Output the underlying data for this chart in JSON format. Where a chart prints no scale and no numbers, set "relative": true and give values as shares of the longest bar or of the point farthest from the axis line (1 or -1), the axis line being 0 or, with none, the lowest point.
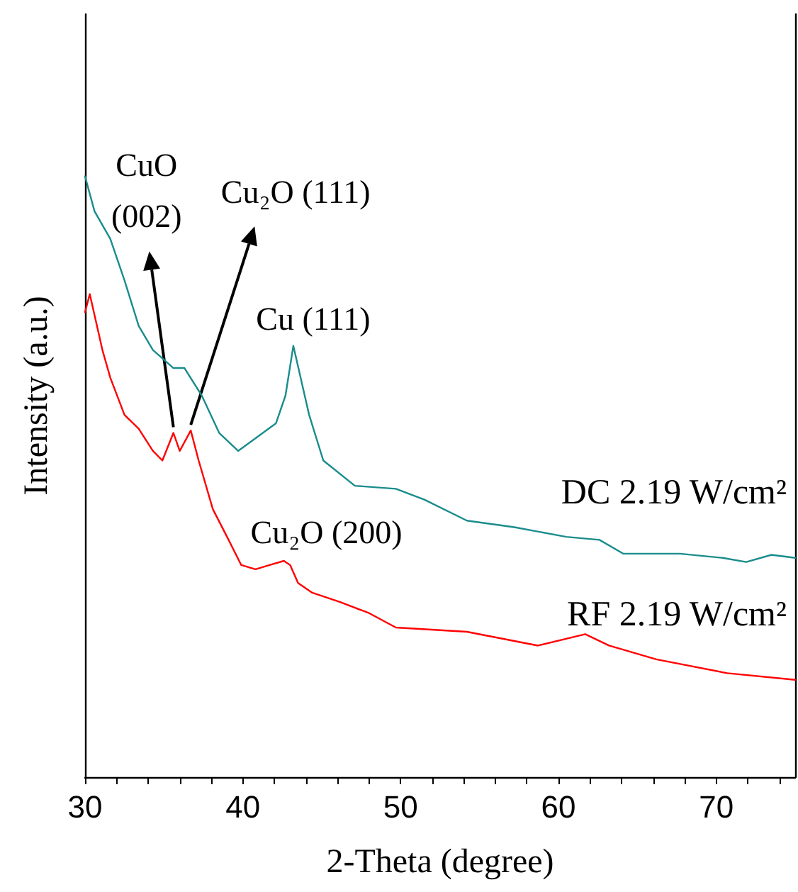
{
  "chart_data": {
    "type": "line",
    "relative": true,
    "xlabel": "2-Theta (degree)",
    "ylabel": "Intensity (a.u.)",
    "xlim": [
      30,
      75
    ],
    "xticks": [
      30,
      {
        "value": 32,
        "label": null
      },
      {
        "value": 34,
        "label": null
      },
      {
        "value": 36,
        "label": null
      },
      {
        "value": 38,
        "label": null
      },
      40,
      {
        "value": 42,
        "label": null
      },
      {
        "value": 44,
        "label": null
      },
      {
        "value": 46,
        "label": null
      },
      {
        "value": 48,
        "label": null
      },
      50,
      {
        "value": 52,
        "label": null
      },
      {
        "value": 54,
        "label": null
      },
      {
        "value": 56,
        "label": null
      },
      {
        "value": 58,
        "label": null
      },
      60,
      {
        "value": 62,
        "label": null
      },
      {
        "value": 64,
        "label": null
      },
      {
        "value": 66,
        "label": null
      },
      {
        "value": 68,
        "label": null
      },
      70,
      {
        "value": 72,
        "label": null
      },
      {
        "value": 74,
        "label": null
      }
    ],
    "tick_labels": "x",
    "grid": false,
    "legend": false,
    "marker": "none",
    "line_style": "solid",
    "series": [
      {
        "name": "DC 2.19 W/cm²",
        "color": "#1a8c8c",
        "x": [
          30.0,
          30.6,
          31.6,
          32.5,
          33.4,
          34.3,
          35.6,
          36.3,
          37.4,
          38.5,
          39.7,
          40.9,
          42.1,
          42.7,
          43.2,
          43.6,
          44.2,
          45.1,
          47.1,
          49.7,
          51.5,
          54.2,
          57.2,
          60.5,
          62.6,
          64.1,
          67.7,
          70.4,
          71.9,
          73.5,
          75.0
        ],
        "values": [
          1.0,
          0.942,
          0.896,
          0.827,
          0.751,
          0.711,
          0.681,
          0.681,
          0.635,
          0.573,
          0.543,
          0.566,
          0.589,
          0.635,
          0.718,
          0.672,
          0.603,
          0.527,
          0.485,
          0.48,
          0.462,
          0.427,
          0.416,
          0.4,
          0.395,
          0.372,
          0.372,
          0.365,
          0.358,
          0.37,
          0.365
        ]
      },
      {
        "name": "RF 2.19 W/cm²",
        "color": "#ff0000",
        "x": [
          30.0,
          30.3,
          31.1,
          31.6,
          32.5,
          33.4,
          34.3,
          34.9,
          35.6,
          36.0,
          36.7,
          37.2,
          38.1,
          39.0,
          39.9,
          40.8,
          41.7,
          42.6,
          43.0,
          43.5,
          44.4,
          46.2,
          48.0,
          49.7,
          54.2,
          58.7,
          61.7,
          63.2,
          66.2,
          70.7,
          75.0
        ],
        "values": [
          0.774,
          0.804,
          0.711,
          0.665,
          0.603,
          0.58,
          0.543,
          0.527,
          0.573,
          0.543,
          0.577,
          0.527,
          0.446,
          0.4,
          0.353,
          0.346,
          0.353,
          0.36,
          0.353,
          0.323,
          0.307,
          0.291,
          0.273,
          0.249,
          0.242,
          0.219,
          0.238,
          0.219,
          0.196,
          0.173,
          0.162
        ]
      }
    ],
    "annotations": [
      {
        "text": "CuO\n(002)",
        "x": 35.6,
        "y": 0.573
      },
      {
        "text": "Cu₂O (111)",
        "x": 36.7,
        "y": 0.577
      },
      {
        "text": "Cu (111)",
        "x": 43.2,
        "y": 0.718
      },
      {
        "text": "Cu₂O (200)",
        "x": 42.6,
        "y": 0.36
      }
    ]
  }
}
